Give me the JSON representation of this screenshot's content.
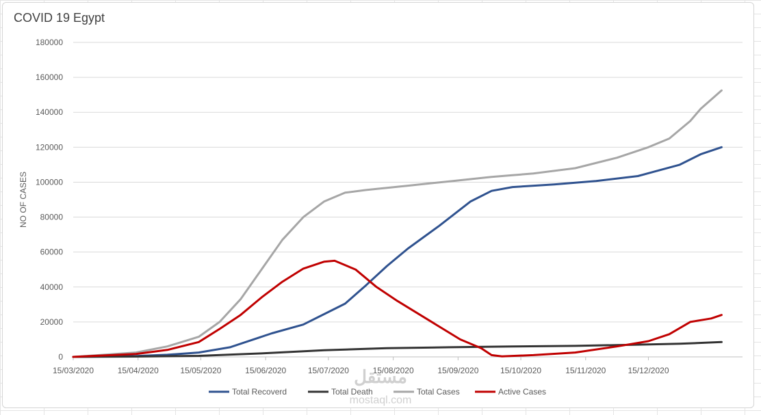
{
  "chart_data": {
    "type": "line",
    "title": "COVID 19 Egypt",
    "xlabel": "",
    "ylabel": "NO OF CASES",
    "ylim": [
      0,
      180000
    ],
    "yticks": [
      0,
      20000,
      40000,
      60000,
      80000,
      100000,
      120000,
      140000,
      160000,
      180000
    ],
    "x_ticks": [
      "15/03/2020",
      "15/04/2020",
      "15/05/2020",
      "15/06/2020",
      "15/07/2020",
      "15/08/2020",
      "15/09/2020",
      "15/10/2020",
      "15/11/2020",
      "15/12/2020"
    ],
    "x_days": [
      0,
      31,
      61,
      92,
      122,
      153,
      184,
      214,
      245,
      275
    ],
    "x_max_day": 320,
    "legend_position": "bottom",
    "grid": true,
    "series": [
      {
        "name": "Total Recoverd",
        "color": "#2f528f",
        "points": [
          [
            0,
            0
          ],
          [
            30,
            500
          ],
          [
            45,
            1200
          ],
          [
            60,
            2500
          ],
          [
            75,
            5500
          ],
          [
            85,
            9500
          ],
          [
            95,
            13500
          ],
          [
            110,
            18500
          ],
          [
            120,
            24500
          ],
          [
            130,
            30500
          ],
          [
            140,
            41000
          ],
          [
            150,
            52000
          ],
          [
            160,
            62000
          ],
          [
            175,
            75000
          ],
          [
            190,
            89000
          ],
          [
            200,
            95000
          ],
          [
            210,
            97200
          ],
          [
            230,
            98700
          ],
          [
            250,
            100700
          ],
          [
            270,
            103500
          ],
          [
            290,
            110000
          ],
          [
            300,
            116000
          ],
          [
            310,
            120000
          ]
        ]
      },
      {
        "name": "Total Death",
        "color": "#333333",
        "points": [
          [
            0,
            0
          ],
          [
            30,
            200
          ],
          [
            60,
            600
          ],
          [
            90,
            2000
          ],
          [
            120,
            3800
          ],
          [
            150,
            5000
          ],
          [
            180,
            5500
          ],
          [
            210,
            6000
          ],
          [
            240,
            6300
          ],
          [
            270,
            7000
          ],
          [
            290,
            7500
          ],
          [
            310,
            8500
          ]
        ]
      },
      {
        "name": "Total Cases",
        "color": "#a6a6a6",
        "points": [
          [
            0,
            0
          ],
          [
            30,
            2500
          ],
          [
            45,
            6000
          ],
          [
            60,
            11500
          ],
          [
            70,
            20000
          ],
          [
            80,
            33000
          ],
          [
            90,
            50000
          ],
          [
            100,
            67000
          ],
          [
            110,
            80000
          ],
          [
            120,
            89000
          ],
          [
            130,
            94000
          ],
          [
            140,
            95500
          ],
          [
            160,
            98000
          ],
          [
            180,
            100500
          ],
          [
            200,
            103000
          ],
          [
            220,
            105000
          ],
          [
            240,
            108000
          ],
          [
            260,
            114000
          ],
          [
            275,
            120000
          ],
          [
            285,
            125000
          ],
          [
            295,
            135000
          ],
          [
            300,
            142000
          ],
          [
            310,
            152500
          ]
        ]
      },
      {
        "name": "Active Cases",
        "color": "#c00000",
        "points": [
          [
            0,
            0
          ],
          [
            30,
            1700
          ],
          [
            45,
            4000
          ],
          [
            60,
            8500
          ],
          [
            70,
            16000
          ],
          [
            80,
            24000
          ],
          [
            90,
            34000
          ],
          [
            100,
            43000
          ],
          [
            110,
            50500
          ],
          [
            120,
            54500
          ],
          [
            125,
            55000
          ],
          [
            135,
            50000
          ],
          [
            145,
            40000
          ],
          [
            155,
            32000
          ],
          [
            170,
            21000
          ],
          [
            185,
            10000
          ],
          [
            195,
            5000
          ],
          [
            200,
            1000
          ],
          [
            205,
            300
          ],
          [
            220,
            1000
          ],
          [
            240,
            2500
          ],
          [
            260,
            6000
          ],
          [
            275,
            9000
          ],
          [
            285,
            13000
          ],
          [
            295,
            20000
          ],
          [
            305,
            22000
          ],
          [
            310,
            24000
          ]
        ]
      }
    ]
  }
}
